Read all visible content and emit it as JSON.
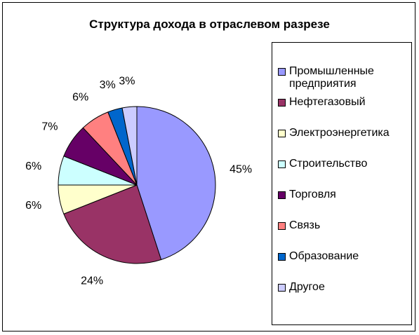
{
  "chart_data": {
    "type": "pie",
    "title": "Структура дохода в отраслевом разрезе",
    "legend_position": "right",
    "slices": [
      {
        "name": "Промышленные предприятия",
        "value": 45,
        "label": "45%",
        "color": "#9999ff"
      },
      {
        "name": "Нефтегазовый",
        "value": 24,
        "label": "24%",
        "color": "#993366"
      },
      {
        "name": "Электроэнергетика",
        "value": 6,
        "label": "6%",
        "color": "#ffffcc"
      },
      {
        "name": "Строительство",
        "value": 6,
        "label": "6%",
        "color": "#ccffff"
      },
      {
        "name": "Торговля",
        "value": 7,
        "label": "7%",
        "color": "#660066"
      },
      {
        "name": "Связь",
        "value": 6,
        "label": "6%",
        "color": "#ff8080"
      },
      {
        "name": "Образование",
        "value": 3,
        "label": "3%",
        "color": "#0066cc"
      },
      {
        "name": "Другое",
        "value": 3,
        "label": "3%",
        "color": "#ccccff"
      }
    ]
  }
}
